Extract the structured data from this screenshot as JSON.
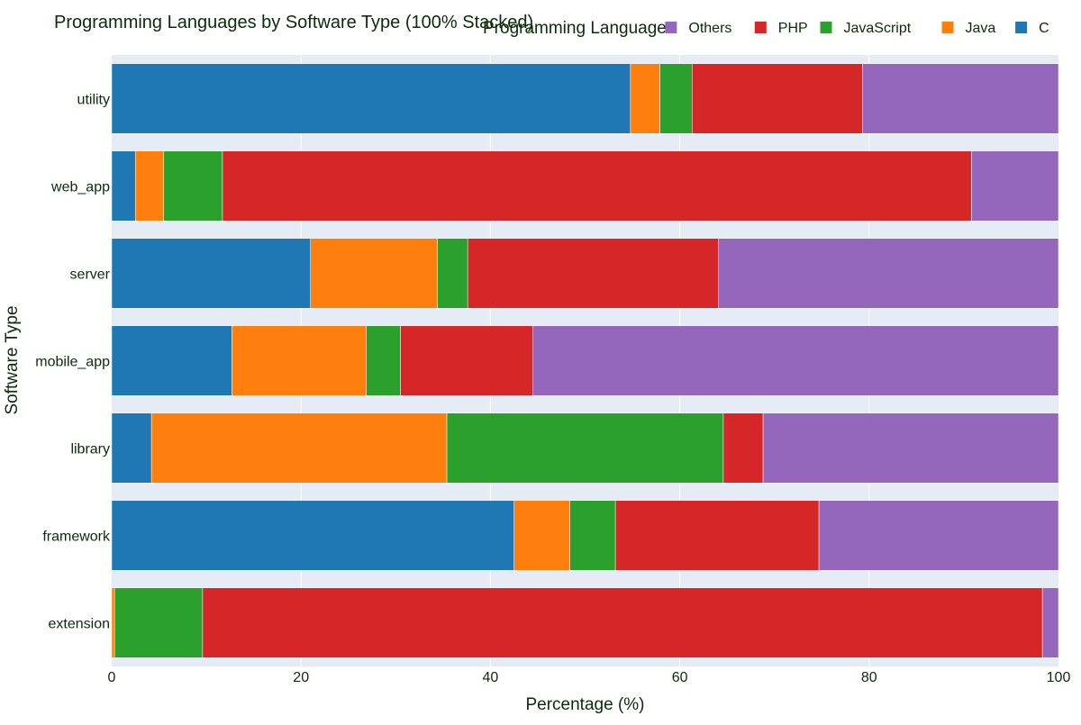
{
  "chart_data": {
    "type": "bar",
    "orientation": "horizontal",
    "stacked": "100%",
    "title": "Programming Languages by Software Type (100% Stacked)",
    "xlabel": "Percentage (%)",
    "ylabel": "Software Type",
    "xlim": [
      0,
      100
    ],
    "x_ticks": [
      "0",
      "20",
      "40",
      "60",
      "80",
      "100"
    ],
    "grid": true,
    "legend": {
      "title": "Programming Language",
      "placement": "top-right",
      "order": [
        "Others",
        "PHP",
        "JavaScript",
        "Java",
        "C"
      ]
    },
    "categories": [
      "utility",
      "web_app",
      "server",
      "mobile_app",
      "library",
      "framework",
      "extension"
    ],
    "series": [
      {
        "name": "C",
        "color": "#1f77b4",
        "values": [
          54.8,
          2.5,
          21.0,
          12.7,
          4.2,
          42.5,
          0.0
        ]
      },
      {
        "name": "Java",
        "color": "#ff7f0e",
        "values": [
          3.1,
          3.0,
          13.4,
          14.2,
          31.2,
          5.9,
          0.3
        ]
      },
      {
        "name": "JavaScript",
        "color": "#2ca02c",
        "values": [
          3.4,
          6.2,
          3.2,
          3.6,
          29.2,
          4.8,
          9.3
        ]
      },
      {
        "name": "PHP",
        "color": "#d62728",
        "values": [
          18.0,
          79.1,
          26.5,
          14.0,
          4.2,
          21.5,
          88.7
        ]
      },
      {
        "name": "Others",
        "color": "#9467bd",
        "values": [
          20.7,
          9.2,
          35.9,
          55.5,
          31.2,
          25.3,
          1.7
        ]
      }
    ]
  },
  "colors": {
    "plot_background": "#e5ecf6",
    "grid": "#ffffff",
    "text": "#0b2b0b"
  }
}
